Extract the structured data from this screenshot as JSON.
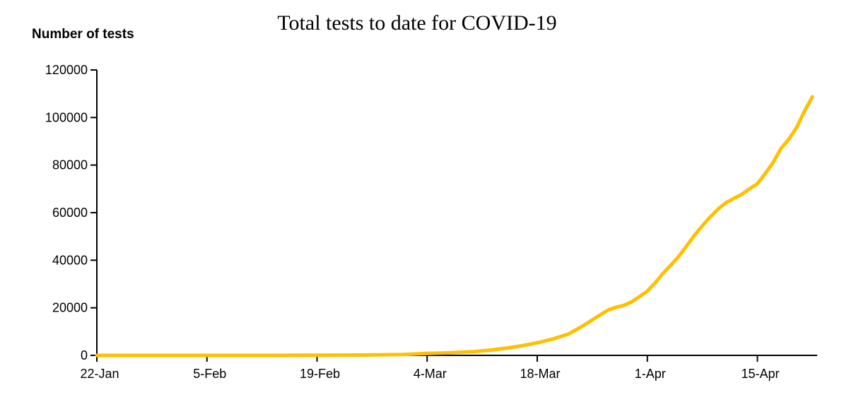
{
  "chart_data": {
    "type": "line",
    "title": "Total tests to date for COVID-19",
    "ylabel": "Number of tests",
    "xlabel": "",
    "x_unit": "days since 22-Jan",
    "xlim": [
      0,
      91.6
    ],
    "ylim": [
      0,
      120000
    ],
    "grid": false,
    "legend": false,
    "background_color": "#ffffff",
    "axis_color": "#000000",
    "text_color": "#000000",
    "x_ticks": [
      {
        "pos": 0,
        "label": "22-Jan"
      },
      {
        "pos": 14,
        "label": "5-Feb"
      },
      {
        "pos": 28,
        "label": "19-Feb"
      },
      {
        "pos": 42,
        "label": "4-Mar"
      },
      {
        "pos": 56,
        "label": "18-Mar"
      },
      {
        "pos": 70,
        "label": "1-Apr"
      },
      {
        "pos": 84,
        "label": "15-Apr"
      }
    ],
    "y_ticks": [
      {
        "pos": 0,
        "label": "0"
      },
      {
        "pos": 20000,
        "label": "20000"
      },
      {
        "pos": 40000,
        "label": "40000"
      },
      {
        "pos": 60000,
        "label": "60000"
      },
      {
        "pos": 80000,
        "label": "80000"
      },
      {
        "pos": 100000,
        "label": "100000"
      },
      {
        "pos": 120000,
        "label": "120000"
      }
    ],
    "series": [
      {
        "name": "Total tests to date",
        "color": "#FFC000",
        "stroke_width": 5,
        "points": [
          [
            0,
            0
          ],
          [
            7,
            0
          ],
          [
            14,
            0
          ],
          [
            21,
            0
          ],
          [
            28,
            50
          ],
          [
            34,
            150
          ],
          [
            39,
            400
          ],
          [
            42,
            800
          ],
          [
            45,
            1100
          ],
          [
            48,
            1600
          ],
          [
            50,
            2200
          ],
          [
            52,
            3000
          ],
          [
            54,
            4000
          ],
          [
            56,
            5300
          ],
          [
            58,
            6900
          ],
          [
            60,
            9000
          ],
          [
            62,
            12800
          ],
          [
            64,
            17000
          ],
          [
            65,
            19000
          ],
          [
            66,
            20200
          ],
          [
            67,
            21000
          ],
          [
            68,
            22500
          ],
          [
            69,
            24700
          ],
          [
            70,
            27000
          ],
          [
            71,
            30500
          ],
          [
            72,
            34500
          ],
          [
            73,
            38000
          ],
          [
            74,
            41600
          ],
          [
            75,
            46000
          ],
          [
            76,
            50500
          ],
          [
            77,
            54500
          ],
          [
            78,
            58200
          ],
          [
            79,
            61500
          ],
          [
            80,
            64200
          ],
          [
            81,
            66000
          ],
          [
            82,
            67700
          ],
          [
            83,
            70000
          ],
          [
            84,
            72200
          ],
          [
            85,
            76500
          ],
          [
            86,
            81100
          ],
          [
            87,
            87000
          ],
          [
            88,
            90900
          ],
          [
            89,
            95900
          ],
          [
            90,
            102800
          ],
          [
            91,
            108700
          ]
        ]
      }
    ]
  }
}
